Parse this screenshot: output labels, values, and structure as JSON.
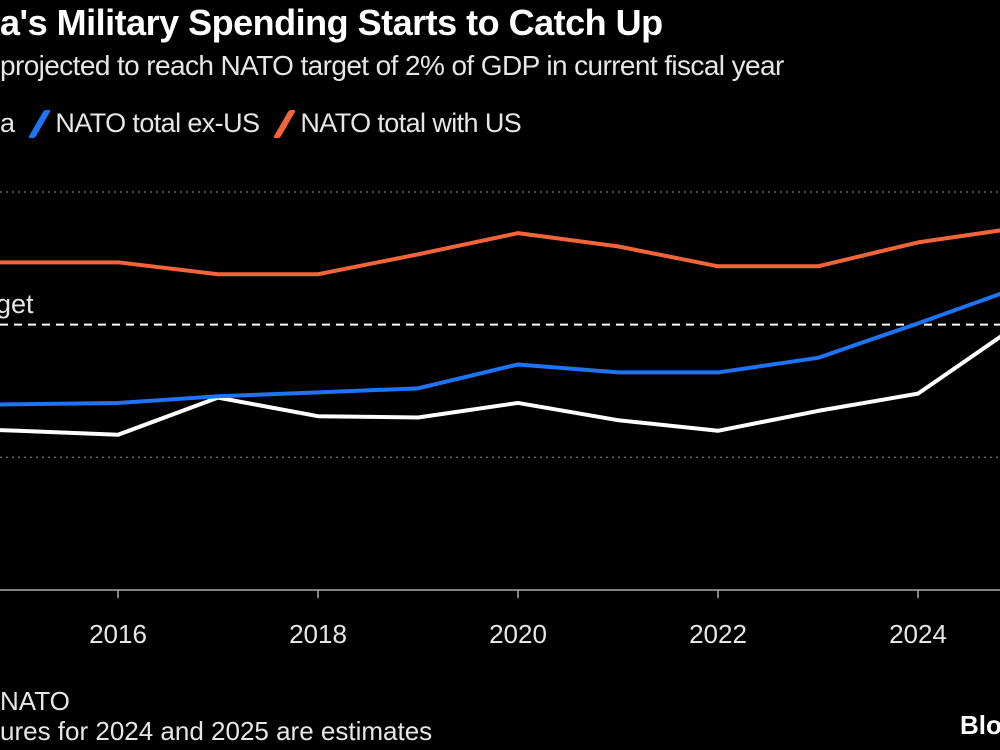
{
  "chart_data": {
    "type": "line",
    "title": "a's Military Spending Starts to Catch Up",
    "subtitle": "projected to reach NATO target of 2% of GDP in current fiscal year",
    "xlabel": "",
    "ylabel": "",
    "x": [
      2015,
      2016,
      2017,
      2018,
      2019,
      2020,
      2021,
      2022,
      2023,
      2024,
      2025
    ],
    "xlim": [
      2014.82,
      2024.82
    ],
    "ylim": [
      0,
      3
    ],
    "y_gridlines": [
      3,
      1,
      0
    ],
    "x_ticks": [
      2016,
      2018,
      2020,
      2022,
      2024
    ],
    "x_tick_labels": [
      "2016",
      "2018",
      "2020",
      "2022",
      "2024"
    ],
    "legend_placement": "top-left",
    "series": [
      {
        "name": "a",
        "color": "#ffffff",
        "values": [
          1.2,
          1.17,
          1.45,
          1.31,
          1.3,
          1.41,
          1.28,
          1.2,
          1.35,
          1.48,
          2.0
        ]
      },
      {
        "name": "NATO total ex-US",
        "color": "#1f74f5",
        "values": [
          1.4,
          1.41,
          1.46,
          1.49,
          1.52,
          1.7,
          1.64,
          1.64,
          1.75,
          2.01,
          2.28
        ]
      },
      {
        "name": "NATO total with US",
        "color": "#f2643a",
        "values": [
          2.47,
          2.47,
          2.38,
          2.38,
          2.53,
          2.69,
          2.59,
          2.44,
          2.44,
          2.62,
          2.73
        ]
      }
    ],
    "annotations": [
      {
        "label": "get",
        "value": 2,
        "style": "dashed"
      }
    ]
  },
  "footer": {
    "source": "NATO",
    "note": "ures for 2024 and 2025 are estimates",
    "logo": "Blo"
  }
}
